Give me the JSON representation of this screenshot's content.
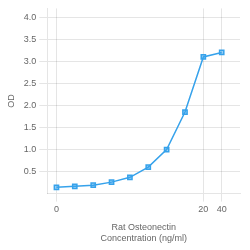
{
  "chart_data": {
    "type": "line",
    "xlabel": [
      "Rat Osteonectin",
      "Concentration (ng/ml)"
    ],
    "ylabel": "OD",
    "x": [
      0.0781,
      0.156,
      0.313,
      0.625,
      1.25,
      2.5,
      5,
      10,
      20,
      40
    ],
    "values": [
      0.143,
      0.165,
      0.19,
      0.26,
      0.37,
      0.6,
      1.0,
      1.85,
      3.1,
      3.2
    ],
    "log": "x",
    "xlim": [
      0.055291,
      79.8105
    ],
    "xticks": [
      {
        "value": 0.0781,
        "label": "0"
      },
      20,
      40
    ],
    "ylim": [
      0,
      4.2
    ],
    "yticks": [
      0.5,
      {
        "value": 1.0,
        "label": "1.0"
      },
      1.5,
      {
        "value": 2.0,
        "label": "2.0"
      },
      2.5,
      {
        "value": 3.0,
        "label": "3.0"
      },
      3.5,
      {
        "value": 4.0,
        "label": "4.0"
      }
    ],
    "grid": true,
    "marker": "square"
  }
}
